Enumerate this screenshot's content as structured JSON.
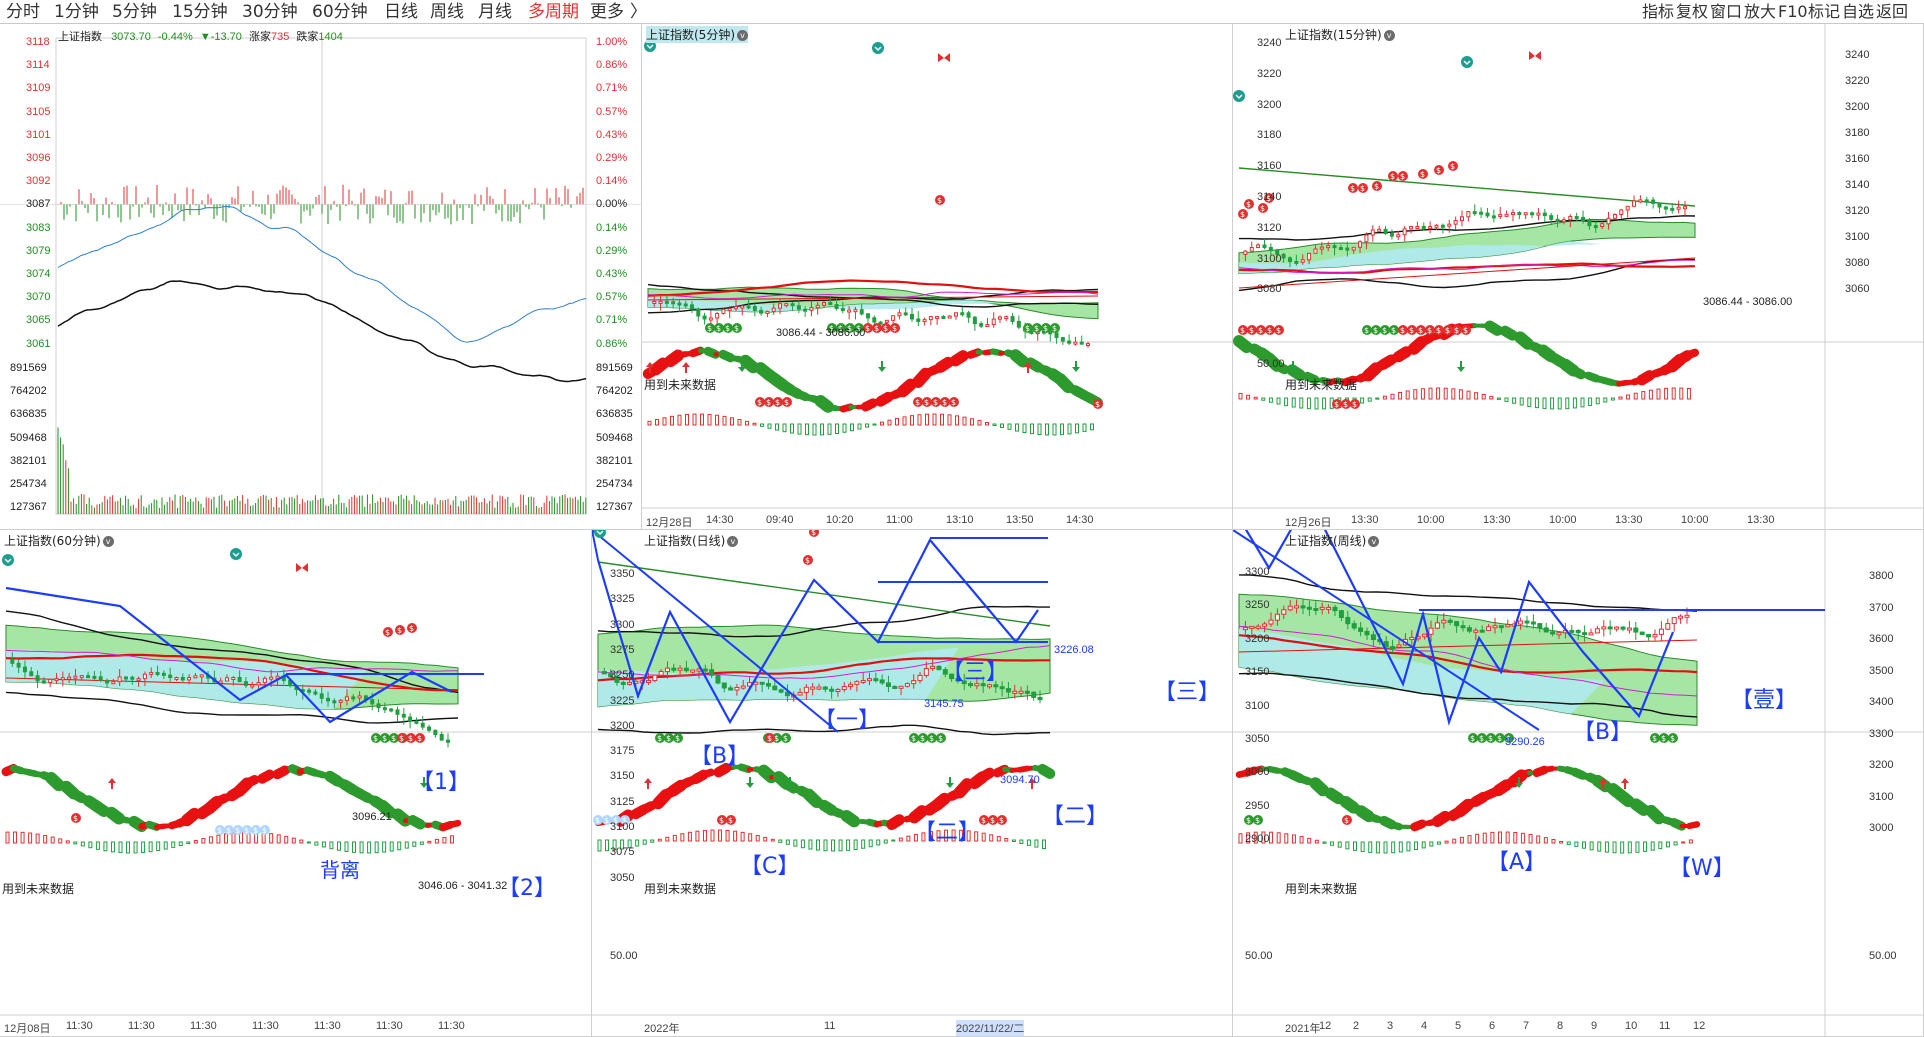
{
  "toolbar": {
    "periods": [
      "分时",
      "1分钟",
      "5分钟",
      "15分钟",
      "30分钟",
      "60分钟",
      "日线",
      "周线",
      "月线",
      "多周期",
      "更多"
    ],
    "more_arrow": "〉",
    "right_tools": [
      "指标",
      "复权",
      "窗口",
      "放大",
      "F10",
      "标记",
      "自选",
      "返回"
    ]
  },
  "intraday": {
    "title": "上证指数",
    "price": "3073.70",
    "change_pct": "-0.44%",
    "change": "▼-13.70",
    "up_label": "涨家",
    "up_count": "735",
    "down_label": "跌家",
    "down_count": "1404",
    "price_ticks": [
      "3118",
      "3114",
      "3109",
      "3105",
      "3101",
      "3096",
      "3092",
      "3087",
      "3083",
      "3079",
      "3074",
      "3070",
      "3065",
      "3061"
    ],
    "pct_ticks": [
      "1.00%",
      "0.86%",
      "0.71%",
      "0.57%",
      "0.43%",
      "0.29%",
      "0.14%",
      "0.00%",
      "0.14%",
      "0.29%",
      "0.43%",
      "0.57%",
      "0.71%",
      "0.86%"
    ],
    "vol_ticks": [
      "891569",
      "764202",
      "636835",
      "509468",
      "382101",
      "254734",
      "127367"
    ],
    "colors": {
      "up": "#e23030",
      "down": "#1f8f1f",
      "flat": "#222222",
      "avg_line": "#2b7fd6"
    }
  },
  "panels": {
    "m5": {
      "title": "上证指数(5分钟)",
      "future_label": "用到未来数据",
      "annotation": "3086.44 - 3086.00",
      "osc_tick": "",
      "x_labels": [
        "12月28日",
        "14:30",
        "09:40",
        "10:20",
        "11:00",
        "13:10",
        "13:50",
        "14:30"
      ]
    },
    "m15": {
      "title": "上证指数(15分钟)",
      "future_label": "用到未来数据",
      "annotation": "3086.44 - 3086.00",
      "left_ticks": [
        "3240",
        "3220",
        "3200",
        "3180",
        "3160",
        "3140",
        "3120",
        "3100",
        "3080"
      ],
      "right_ticks": [
        "3240",
        "3220",
        "3200",
        "3180",
        "3160",
        "3140",
        "3120",
        "3100",
        "3080",
        "3060"
      ],
      "osc_tick": "50.00",
      "x_labels": [
        "12月26日",
        "13:30",
        "10:00",
        "13:30",
        "10:00",
        "13:30",
        "10:00",
        "13:30"
      ]
    },
    "m60": {
      "title": "上证指数(60分钟)",
      "future_label": "用到未来数据",
      "annotation_high": "3096.21",
      "annotation_low": "3046.06 - 3041.32",
      "wave_labels": [
        "【1】",
        "背离",
        "【2】"
      ],
      "x_labels": [
        "12月08日",
        "11:30",
        "11:30",
        "11:30",
        "11:30",
        "11:30",
        "11:30",
        "11:30"
      ]
    },
    "day": {
      "title": "上证指数(日线)",
      "future_label": "用到未来数据",
      "left_ticks": [
        "3350",
        "3325",
        "3300",
        "3275",
        "3250",
        "3225",
        "3200",
        "3175",
        "3150",
        "3125",
        "3100",
        "3075",
        "3050"
      ],
      "osc_tick": "50.00",
      "annotations": [
        "3226.08",
        "3145.75",
        "3094.70"
      ],
      "wave_labels": [
        "【B】",
        "【C】",
        "【一】",
        "【二】",
        "【三】",
        "【二】",
        "【三】"
      ],
      "x_labels": [
        "2022年",
        "11",
        "2022/11/22/二"
      ]
    },
    "week": {
      "title": "上证指数(周线)",
      "future_label": "用到未来数据",
      "left_ticks": [
        "3300",
        "3250",
        "3200",
        "3150",
        "3100",
        "3050",
        "3000",
        "2950",
        "2900"
      ],
      "right_ticks": [
        "3800",
        "3700",
        "3600",
        "3500",
        "3400",
        "3300",
        "3200",
        "3100",
        "3000"
      ],
      "osc_tick": "50.00",
      "annotation": "3290.26",
      "wave_labels": [
        "【壹】",
        "【B】",
        "【A】",
        "【W】"
      ],
      "x_labels": [
        "2021年",
        "12",
        "2",
        "3",
        "4",
        "5",
        "6",
        "7",
        "8",
        "9",
        "10",
        "11",
        "12"
      ]
    }
  }
}
